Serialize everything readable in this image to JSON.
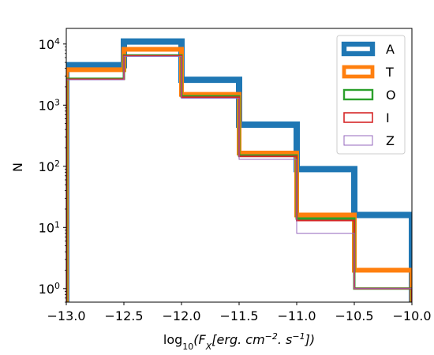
{
  "chart_data": {
    "type": "histogram",
    "x_scale": "linear",
    "y_scale": "log",
    "xlim": [
      -13.0,
      -10.0
    ],
    "ylim": [
      0.6,
      18000
    ],
    "xlabel_main": "log",
    "xlabel_sub": "10",
    "xlabel_expr": "(F",
    "xlabel_expr_sub": "X",
    "xlabel_units": "[erg. cm",
    "xlabel_units_sup1": "−2",
    "xlabel_units_mid": ". s",
    "xlabel_units_sup2": "−1",
    "xlabel_units_end": "])",
    "ylabel": "N",
    "x_ticks": [
      -13.0,
      -12.5,
      -12.0,
      -11.5,
      -11.0,
      -10.5,
      -10.0
    ],
    "x_tick_labels": [
      "−13.0",
      "−12.5",
      "−12.0",
      "−11.5",
      "−11.0",
      "−10.5",
      "−10.0"
    ],
    "y_ticks": [
      {
        "value": 1,
        "base": "10",
        "exp": "0"
      },
      {
        "value": 10,
        "base": "10",
        "exp": "1"
      },
      {
        "value": 100,
        "base": "10",
        "exp": "2"
      },
      {
        "value": 1000,
        "base": "10",
        "exp": "3"
      },
      {
        "value": 10000,
        "base": "10",
        "exp": "4"
      }
    ],
    "bin_edges": [
      -13.0,
      -12.5,
      -12.0,
      -11.5,
      -11.0,
      -10.5,
      -10.0
    ],
    "legend_position": "upper-right",
    "series": [
      {
        "name": "A",
        "color": "#1f77b4",
        "width": 8,
        "values": [
          4500,
          11000,
          2600,
          480,
          90,
          16
        ]
      },
      {
        "name": "T",
        "color": "#ff7f0e",
        "width": 6,
        "values": [
          3800,
          8200,
          1500,
          165,
          16,
          2
        ]
      },
      {
        "name": "O",
        "color": "#2ca02c",
        "width": 3,
        "values": [
          2700,
          6500,
          1400,
          150,
          14,
          1
        ]
      },
      {
        "name": "I",
        "color": "#d62728",
        "width": 2,
        "values": [
          2650,
          6400,
          1350,
          145,
          13,
          1
        ]
      },
      {
        "name": "Z",
        "color": "#9467bd",
        "width": 1,
        "values": [
          2600,
          6300,
          1300,
          130,
          8,
          1
        ]
      }
    ]
  }
}
